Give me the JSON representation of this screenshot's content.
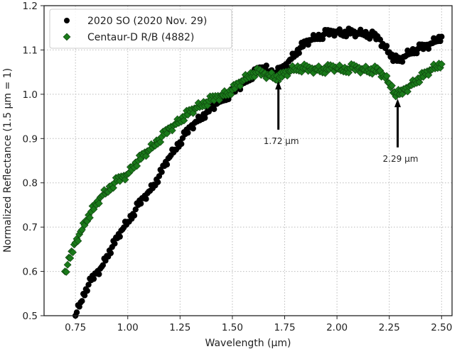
{
  "chart_data": {
    "type": "scatter",
    "title": "",
    "xlabel": "Wavelength (μm)",
    "ylabel": "Normalized Reflectance (1.5 μm = 1)",
    "xlim": [
      0.6,
      2.55
    ],
    "ylim": [
      0.5,
      1.2
    ],
    "xticks": [
      0.75,
      1.0,
      1.25,
      1.5,
      1.75,
      2.0,
      2.25,
      2.5
    ],
    "xtick_labels": [
      "0.75",
      "1.00",
      "1.25",
      "1.50",
      "1.75",
      "2.00",
      "2.25",
      "2.50"
    ],
    "yticks": [
      0.5,
      0.6,
      0.7,
      0.8,
      0.9,
      1.0,
      1.1,
      1.2
    ],
    "ytick_labels": [
      "0.5",
      "0.6",
      "0.7",
      "0.8",
      "0.9",
      "1.0",
      "1.1",
      "1.2"
    ],
    "grid": true,
    "legend_position": "top-left",
    "series": [
      {
        "name": "2020 SO (2020 Nov. 29)",
        "marker": "circle",
        "color": "#000000",
        "x": [
          0.75,
          0.775,
          0.8,
          0.825,
          0.85,
          0.875,
          0.9,
          0.925,
          0.95,
          0.975,
          1.0,
          1.025,
          1.05,
          1.075,
          1.1,
          1.125,
          1.15,
          1.175,
          1.2,
          1.225,
          1.25,
          1.275,
          1.3,
          1.325,
          1.35,
          1.375,
          1.4,
          1.425,
          1.45,
          1.475,
          1.5,
          1.525,
          1.55,
          1.575,
          1.6,
          1.625,
          1.65,
          1.675,
          1.7,
          1.725,
          1.75,
          1.775,
          1.8,
          1.825,
          1.85,
          1.875,
          1.9,
          1.925,
          1.95,
          1.975,
          2.0,
          2.025,
          2.05,
          2.075,
          2.1,
          2.125,
          2.15,
          2.175,
          2.2,
          2.225,
          2.25,
          2.275,
          2.3,
          2.325,
          2.35,
          2.375,
          2.4,
          2.425,
          2.45,
          2.475,
          2.5
        ],
        "y": [
          0.5,
          0.53,
          0.56,
          0.58,
          0.595,
          0.61,
          0.635,
          0.655,
          0.675,
          0.695,
          0.712,
          0.73,
          0.75,
          0.765,
          0.78,
          0.796,
          0.815,
          0.838,
          0.858,
          0.875,
          0.892,
          0.91,
          0.925,
          0.938,
          0.948,
          0.958,
          0.968,
          0.978,
          0.988,
          0.995,
          1.005,
          1.015,
          1.025,
          1.035,
          1.045,
          1.055,
          1.06,
          1.052,
          1.048,
          1.052,
          1.062,
          1.078,
          1.092,
          1.105,
          1.115,
          1.122,
          1.128,
          1.132,
          1.138,
          1.14,
          1.142,
          1.138,
          1.14,
          1.138,
          1.136,
          1.138,
          1.135,
          1.132,
          1.125,
          1.11,
          1.095,
          1.08,
          1.075,
          1.085,
          1.095,
          1.1,
          1.105,
          1.108,
          1.115,
          1.125,
          1.13
        ]
      },
      {
        "name": "Centaur-D R/B (4882)",
        "marker": "diamond",
        "color": "#1a7a1a",
        "x": [
          0.7,
          0.725,
          0.75,
          0.775,
          0.8,
          0.825,
          0.85,
          0.875,
          0.9,
          0.925,
          0.95,
          0.975,
          1.0,
          1.025,
          1.05,
          1.075,
          1.1,
          1.125,
          1.15,
          1.175,
          1.2,
          1.225,
          1.25,
          1.275,
          1.3,
          1.325,
          1.35,
          1.375,
          1.4,
          1.425,
          1.45,
          1.475,
          1.5,
          1.525,
          1.55,
          1.575,
          1.6,
          1.625,
          1.65,
          1.675,
          1.7,
          1.725,
          1.75,
          1.775,
          1.8,
          1.825,
          1.85,
          1.875,
          1.9,
          1.925,
          1.95,
          1.975,
          2.0,
          2.025,
          2.05,
          2.075,
          2.1,
          2.125,
          2.15,
          2.175,
          2.2,
          2.225,
          2.25,
          2.275,
          2.3,
          2.325,
          2.35,
          2.375,
          2.4,
          2.425,
          2.45,
          2.475,
          2.5
        ],
        "y": [
          0.6,
          0.63,
          0.665,
          0.69,
          0.715,
          0.735,
          0.75,
          0.77,
          0.78,
          0.795,
          0.805,
          0.812,
          0.82,
          0.838,
          0.85,
          0.862,
          0.872,
          0.885,
          0.898,
          0.91,
          0.922,
          0.932,
          0.942,
          0.952,
          0.96,
          0.968,
          0.975,
          0.982,
          0.988,
          0.993,
          0.998,
          1.003,
          1.01,
          1.02,
          1.03,
          1.04,
          1.048,
          1.05,
          1.046,
          1.044,
          1.04,
          1.038,
          1.045,
          1.052,
          1.058,
          1.06,
          1.058,
          1.056,
          1.058,
          1.055,
          1.057,
          1.06,
          1.058,
          1.055,
          1.057,
          1.06,
          1.058,
          1.057,
          1.055,
          1.055,
          1.052,
          1.04,
          1.025,
          1.005,
          1.0,
          1.01,
          1.02,
          1.03,
          1.038,
          1.045,
          1.055,
          1.062,
          1.068
        ]
      }
    ],
    "annotations": [
      {
        "text": "1.72 μm",
        "x": 1.72,
        "arrow_from_y": 0.92,
        "arrow_to_y": 1.03
      },
      {
        "text": "2.29 μm",
        "x": 2.29,
        "arrow_from_y": 0.88,
        "arrow_to_y": 0.99
      }
    ]
  }
}
